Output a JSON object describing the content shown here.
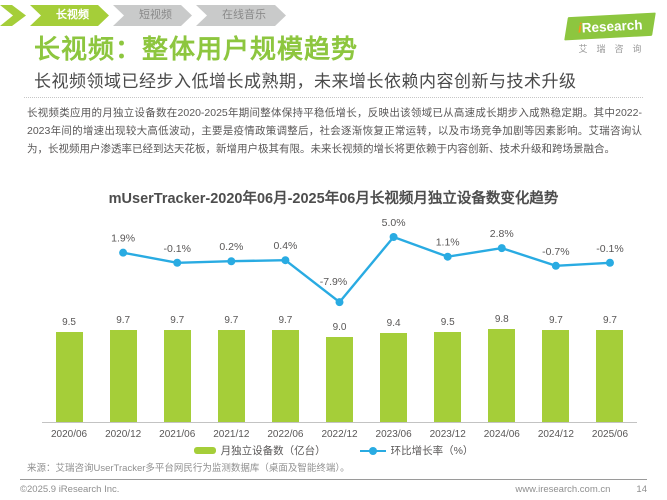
{
  "tabs": [
    {
      "label": "长视频",
      "active": true
    },
    {
      "label": "短视频",
      "active": false
    },
    {
      "label": "在线音乐",
      "active": false
    }
  ],
  "logo": {
    "brand_i": "i",
    "brand_rest": "Research",
    "cn": "艾瑞咨询"
  },
  "header": {
    "title": "长视频：整体用户规模趋势",
    "subtitle": "长视频领域已经步入低增长成熟期，未来增长依赖内容创新与技术升级"
  },
  "body_paragraph": "长视频类应用的月独立设备数在2020-2025年期间整体保持平稳低增长，反映出该领域已从高速成长期步入成熟稳定期。其中2022-2023年间的增速出现较大高低波动，主要是疫情政策调整后，社会逐渐恢复正常运转，以及市场竞争加剧等因素影响。艾瑞咨询认为，长视频用户渗透率已经到达天花板，新增用户极其有限。未来长视频的增长将更依赖于内容创新、技术升级和跨场景融合。",
  "chart_data": {
    "type": "bar",
    "title": "mUserTracker-2020年06月-2025年06月长视频月独立设备数变化趋势",
    "categories": [
      "2020/06",
      "2020/12",
      "2021/06",
      "2021/12",
      "2022/06",
      "2022/12",
      "2023/06",
      "2023/12",
      "2024/06",
      "2024/12",
      "2025/06"
    ],
    "series": [
      {
        "name": "月独立设备数（亿台）",
        "type": "bar",
        "color": "#A5CE39",
        "values": [
          9.5,
          9.7,
          9.7,
          9.7,
          9.7,
          9.0,
          9.4,
          9.5,
          9.8,
          9.7,
          9.7
        ]
      },
      {
        "name": "环比增长率（%）",
        "type": "line",
        "color": "#29ABE2",
        "values": [
          null,
          1.9,
          -0.1,
          0.2,
          0.4,
          -7.9,
          5.0,
          1.1,
          2.8,
          -0.7,
          -0.1
        ]
      }
    ],
    "ylabel": "",
    "xlabel": "",
    "grid": false,
    "legend_position": "bottom",
    "bar_value_labels": true,
    "line_value_labels": true
  },
  "source": "来源：艾瑞咨询UserTracker多平台网民行为监测数据库（桌面及智能终端）。",
  "footer": {
    "copyright": "©2025.9 iResearch Inc.",
    "website": "www.iresearch.com.cn",
    "page_number": "14"
  }
}
